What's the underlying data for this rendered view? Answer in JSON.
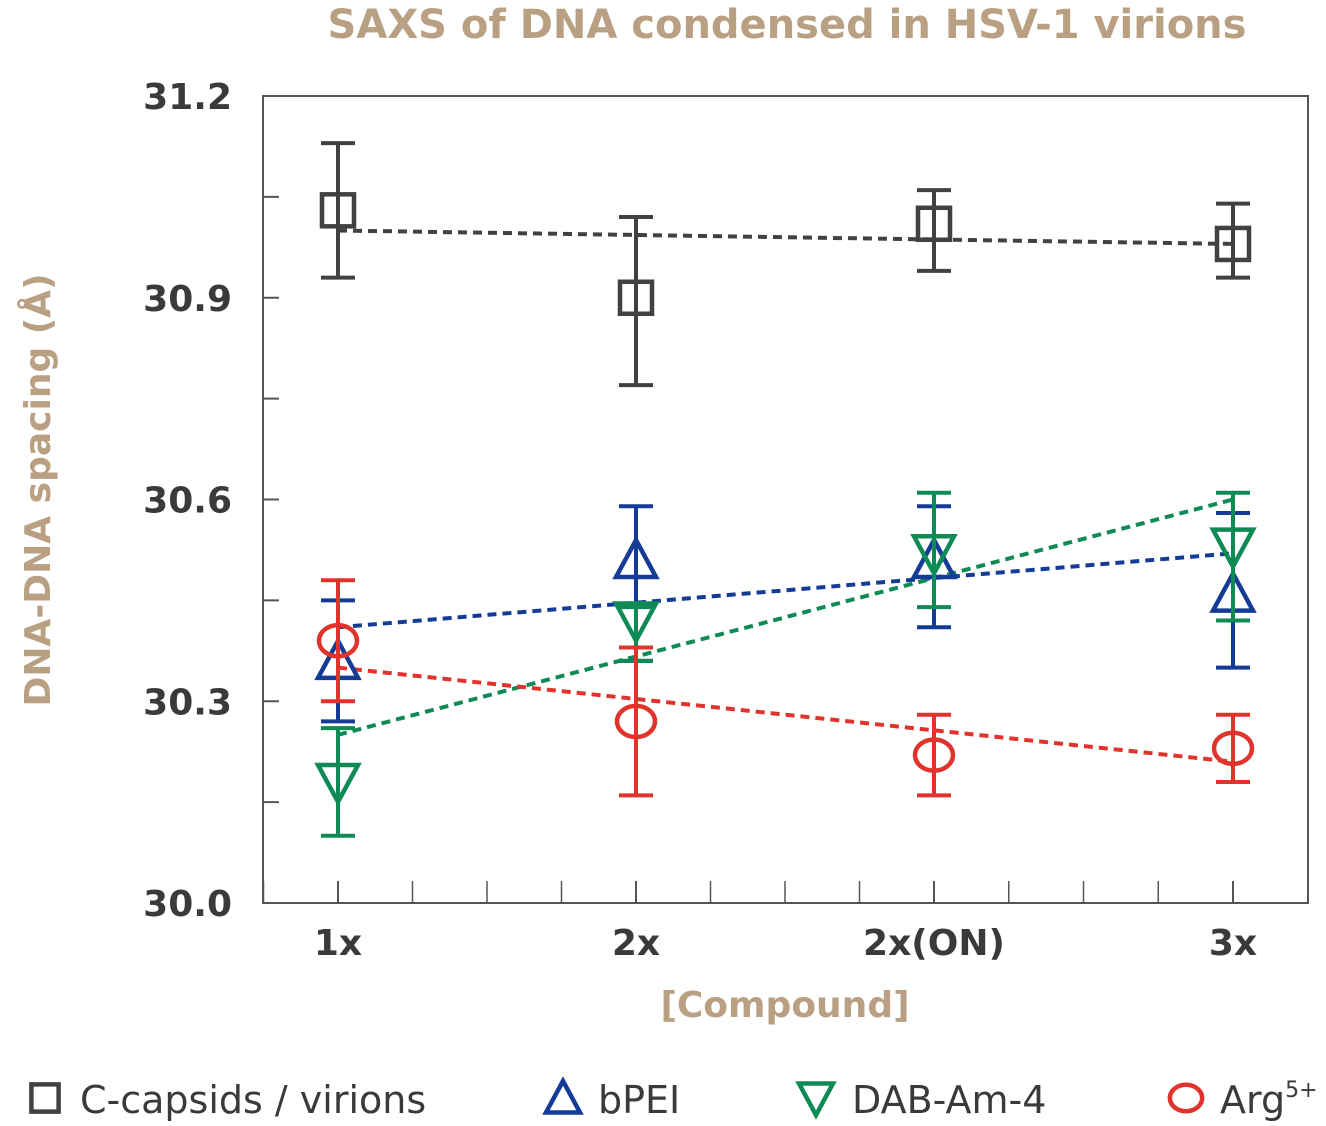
{
  "chart_data": {
    "type": "scatter",
    "title": "SAXS of DNA condensed in HSV-1 virions",
    "xlabel": "[Compound]",
    "ylabel": "DNA-DNA spacing (Å)",
    "categories": [
      "1x",
      "2x",
      "2x(ON)",
      "3x"
    ],
    "ylim": [
      30.0,
      31.2
    ],
    "y_ticks": [
      "30.0",
      "30.3",
      "30.6",
      "30.9",
      "31.2"
    ],
    "y_tick_values": [
      30.0,
      30.3,
      30.6,
      30.9,
      31.2
    ],
    "grid": false,
    "legend_position": "bottom",
    "colors": {
      "title": "#b9a082",
      "axis_title": "#b9a082",
      "axis": "#555555"
    },
    "series": [
      {
        "name": "C-capsids / virions",
        "marker": "square",
        "color": "#414141",
        "values": [
          31.03,
          30.9,
          31.01,
          30.98
        ],
        "err_low": [
          30.93,
          30.77,
          30.94,
          30.93
        ],
        "err_high": [
          31.13,
          31.02,
          31.06,
          31.04
        ],
        "trend": [
          31.0,
          30.98
        ]
      },
      {
        "name": "bPEI",
        "marker": "triangle-up",
        "color": "#143c96",
        "values": [
          30.36,
          30.51,
          30.51,
          30.46
        ],
        "err_low": [
          30.27,
          30.36,
          30.41,
          30.35
        ],
        "err_high": [
          30.45,
          30.59,
          30.59,
          30.58
        ],
        "trend": [
          30.41,
          30.52
        ]
      },
      {
        "name": "DAB-Am-4",
        "marker": "triangle-down",
        "color": "#0e8a55",
        "values": [
          30.18,
          30.42,
          30.52,
          30.53
        ],
        "err_low": [
          30.1,
          30.36,
          30.44,
          30.42
        ],
        "err_high": [
          30.26,
          30.44,
          30.61,
          30.61
        ],
        "trend": [
          30.25,
          30.6
        ]
      },
      {
        "name": "Arg",
        "name_sup": "5+",
        "marker": "circle",
        "color": "#e0332b",
        "values": [
          30.39,
          30.27,
          30.22,
          30.23
        ],
        "err_low": [
          30.3,
          30.16,
          30.16,
          30.18
        ],
        "err_high": [
          30.48,
          30.38,
          30.28,
          30.28
        ],
        "trend": [
          30.35,
          30.21
        ]
      }
    ]
  }
}
